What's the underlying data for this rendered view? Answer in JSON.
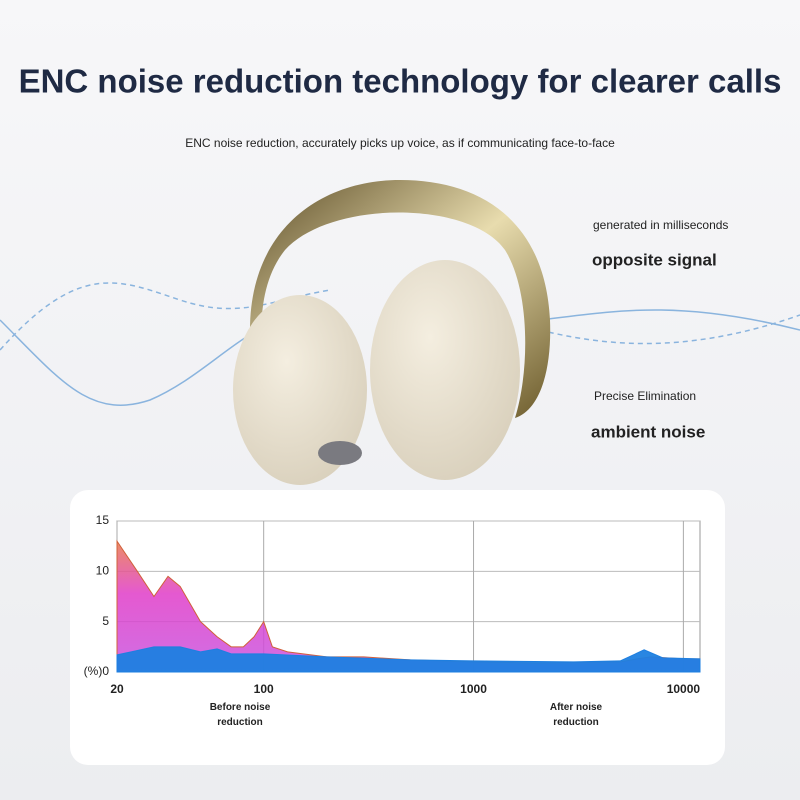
{
  "header": {
    "title": "ENC noise reduction technology for clearer calls",
    "subtitle": "ENC noise reduction, accurately picks up voice, as if communicating face-to-face"
  },
  "annotations": {
    "top_small": "generated in milliseconds",
    "top_large": "opposite signal",
    "bottom_small": "Precise Elimination",
    "bottom_large": "ambient noise"
  },
  "chart_data": {
    "type": "area",
    "log_x": true,
    "grid": true,
    "xlim": [
      20,
      12000
    ],
    "xticks": [
      20,
      100,
      1000,
      10000
    ],
    "ylim": [
      0,
      15
    ],
    "yticks": [
      {
        "value": 0,
        "label": "(%)0"
      },
      5,
      10,
      15
    ],
    "series": [
      {
        "name": "Before noise reduction",
        "color": "#e03cc8",
        "x": [
          20,
          25,
          30,
          35,
          40,
          50,
          60,
          70,
          80,
          90,
          100,
          110,
          130,
          200,
          300,
          500,
          1000,
          2000,
          5000,
          6000,
          7000,
          10000,
          12000
        ],
        "values": [
          13,
          10,
          7.5,
          9.5,
          8.5,
          5,
          3.5,
          2.5,
          2.5,
          3.5,
          5,
          2.5,
          2,
          1.5,
          1.5,
          1.2,
          1,
          0.9,
          1,
          1.3,
          1.5,
          1.3,
          1.3
        ]
      },
      {
        "name": "After noise reduction",
        "color": "#1e7fe0",
        "x": [
          20,
          30,
          40,
          50,
          60,
          70,
          100,
          200,
          500,
          1000,
          3000,
          5000,
          6500,
          8000,
          12000
        ],
        "values": [
          1.7,
          2.5,
          2.5,
          2,
          2.3,
          1.8,
          1.8,
          1.5,
          1.2,
          1.1,
          1,
          1.1,
          2.2,
          1.4,
          1.3
        ]
      }
    ]
  }
}
